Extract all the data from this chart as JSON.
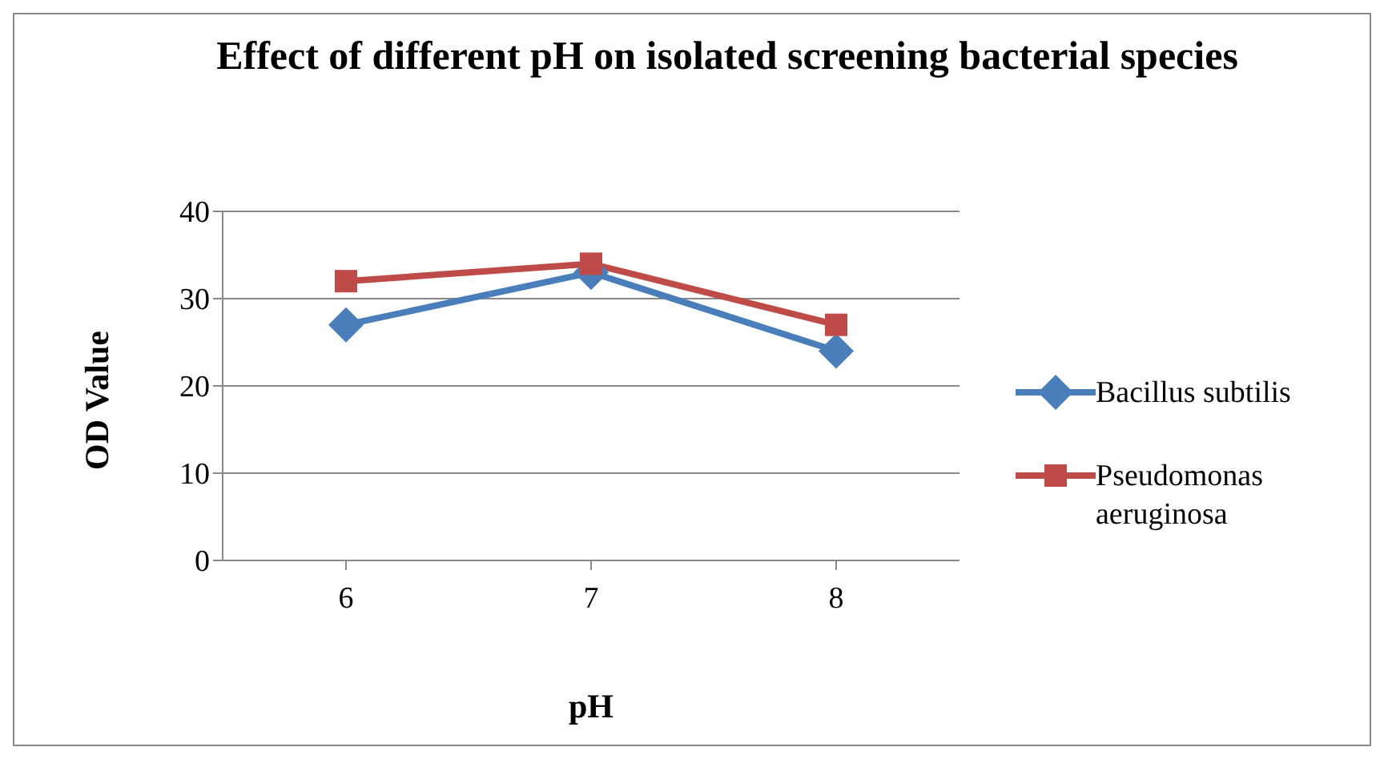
{
  "chart_data": {
    "type": "line",
    "title": "Effect of different pH on isolated screening bacterial species",
    "xlabel": "pH",
    "ylabel": "OD  Value",
    "categories": [
      "6",
      "7",
      "8"
    ],
    "series": [
      {
        "name": "Bacillus subtilis",
        "color": "#4a7ebb",
        "values": [
          27,
          33,
          24
        ],
        "marker": "diamond"
      },
      {
        "name": "Pseudomonas aeruginosa",
        "color": "#be4b48",
        "values": [
          32,
          34,
          27
        ],
        "marker": "square"
      }
    ],
    "ylim": [
      0,
      40
    ],
    "yticks": [
      0,
      10,
      20,
      30,
      40
    ],
    "grid": "y",
    "legend": "right"
  }
}
